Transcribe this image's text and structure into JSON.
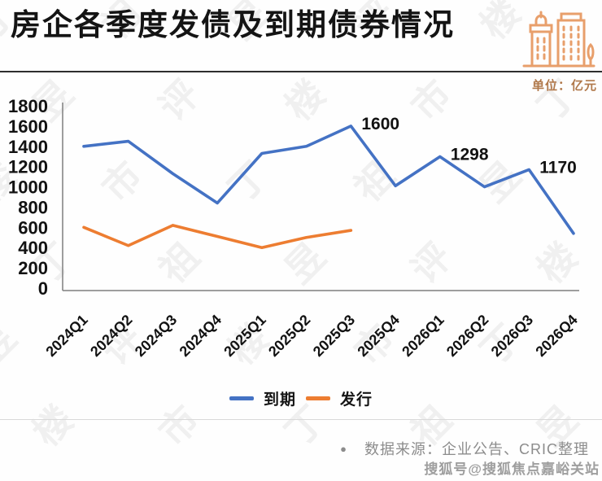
{
  "header": {
    "title": "房企各季度发债及到期债券情况",
    "icon": "buildings-icon",
    "icon_color": "#E89F6B"
  },
  "unit_label": "单位：亿元",
  "chart_data": {
    "type": "line",
    "categories": [
      "2024Q1",
      "2024Q2",
      "2024Q3",
      "2024Q4",
      "2025Q1",
      "2025Q2",
      "2025Q3",
      "2025Q4",
      "2026Q1",
      "2026Q2",
      "2026Q3",
      "2026Q4"
    ],
    "series": [
      {
        "key": "maturity",
        "name": "到期",
        "color": "#4472C4",
        "values": [
          1400,
          1450,
          1130,
          840,
          1330,
          1400,
          1600,
          1010,
          1298,
          1000,
          1170,
          540
        ]
      },
      {
        "key": "issuance",
        "name": "发行",
        "color": "#ED7D31",
        "values": [
          600,
          420,
          620,
          510,
          400,
          500,
          570,
          null,
          null,
          null,
          null,
          null
        ]
      }
    ],
    "annotations": [
      {
        "category": "2025Q3",
        "series": "到期",
        "text": "1600"
      },
      {
        "category": "2026Q1",
        "series": "到期",
        "text": "1298"
      },
      {
        "category": "2026Q3",
        "series": "到期",
        "text": "1170"
      }
    ],
    "title": "房企各季度发债及到期债券情况",
    "unit": "亿元",
    "xlabel": "",
    "ylabel": "",
    "ylim": [
      0,
      1800
    ],
    "ytick_step": 200,
    "yticks": [
      0,
      200,
      400,
      600,
      800,
      1000,
      1200,
      1400,
      1600,
      1800
    ],
    "grid": false,
    "legend_position": "bottom"
  },
  "legend": {
    "items": [
      {
        "label": "到期",
        "color": "#4472C4"
      },
      {
        "label": "发行",
        "color": "#ED7D31"
      }
    ]
  },
  "footer": {
    "source_bullet": "●",
    "source_text": "数据来源：企业公告、CRIC整理",
    "sohu_watermark": "搜狐号@搜狐焦点嘉峪关站"
  },
  "background_watermark": {
    "text": "丁祖昱评楼市"
  }
}
